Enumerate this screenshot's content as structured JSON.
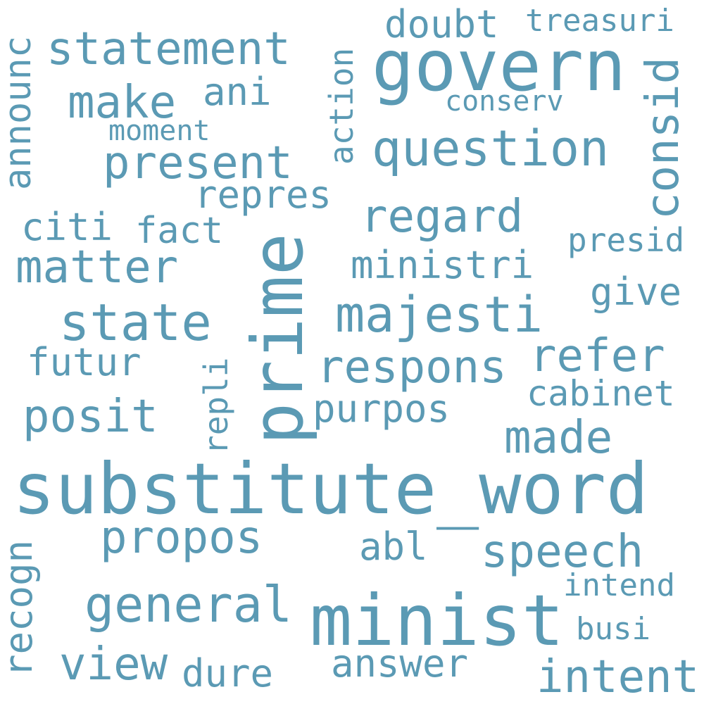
{
  "colors": {
    "background": "#ffffff",
    "word": "#5b9ab4"
  },
  "words": [
    "substitute_word",
    "minist",
    "prime",
    "govern",
    "question",
    "majesti",
    "statement",
    "state",
    "general",
    "respons",
    "regard",
    "speech",
    "present",
    "consid",
    "intent",
    "propos",
    "made",
    "matter",
    "posit",
    "make",
    "refer",
    "view",
    "announc",
    "ministri",
    "answer",
    "purpos",
    "give",
    "recogn",
    "dure",
    "ani",
    "doubt",
    "futur",
    "repres",
    "cabinet",
    "action",
    "citi",
    "fact",
    "abl",
    "presid",
    "repli",
    "treasuri",
    "busi",
    "intend",
    "conserv",
    "moment"
  ]
}
